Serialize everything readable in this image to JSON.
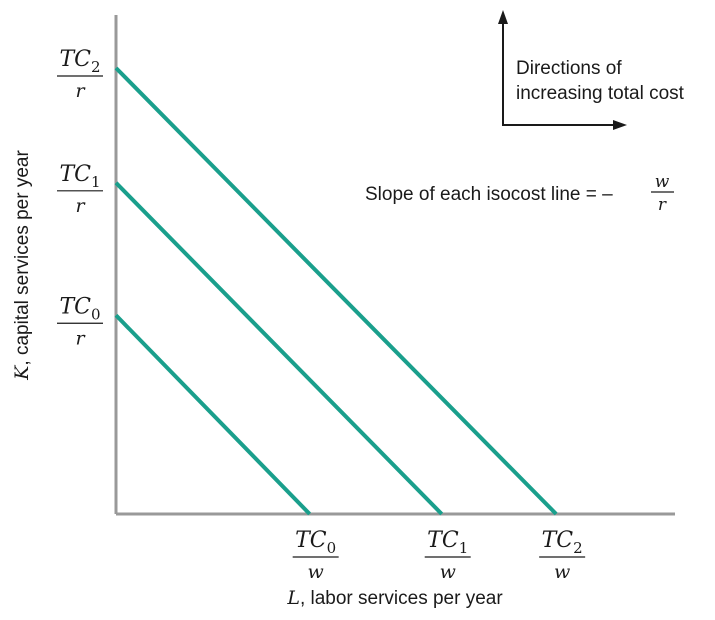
{
  "colors": {
    "line": "#1a9f8c",
    "axis": "#999999",
    "text": "#1a1a1a",
    "arrow": "#1a1a1a"
  },
  "chart_data": {
    "type": "line",
    "xlabel_var": "L",
    "xlabel_rest": ", labor services per year",
    "ylabel_var": "K",
    "ylabel_rest": ", capital services per year",
    "xlim": [
      0,
      1.27
    ],
    "ylim": [
      0,
      1.13
    ],
    "series": [
      {
        "x_intercept": 0.44,
        "y_intercept": 0.45,
        "x_tick": {
          "num": "TC",
          "sub": "0",
          "den": "w"
        },
        "y_tick": {
          "num": "TC",
          "sub": "0",
          "den": "r"
        }
      },
      {
        "x_intercept": 0.74,
        "y_intercept": 0.75,
        "x_tick": {
          "num": "TC",
          "sub": "1",
          "den": "w"
        },
        "y_tick": {
          "num": "TC",
          "sub": "1",
          "den": "r"
        }
      },
      {
        "x_intercept": 1.0,
        "y_intercept": 1.01,
        "x_tick": {
          "num": "TC",
          "sub": "2",
          "den": "w"
        },
        "y_tick": {
          "num": "TC",
          "sub": "2",
          "den": "r"
        }
      }
    ],
    "annotations": {
      "directions_line1": "Directions of",
      "directions_line2": "increasing total cost",
      "slope_text": "Slope of each isocost line = –",
      "slope_num": "w",
      "slope_den": "r"
    }
  }
}
